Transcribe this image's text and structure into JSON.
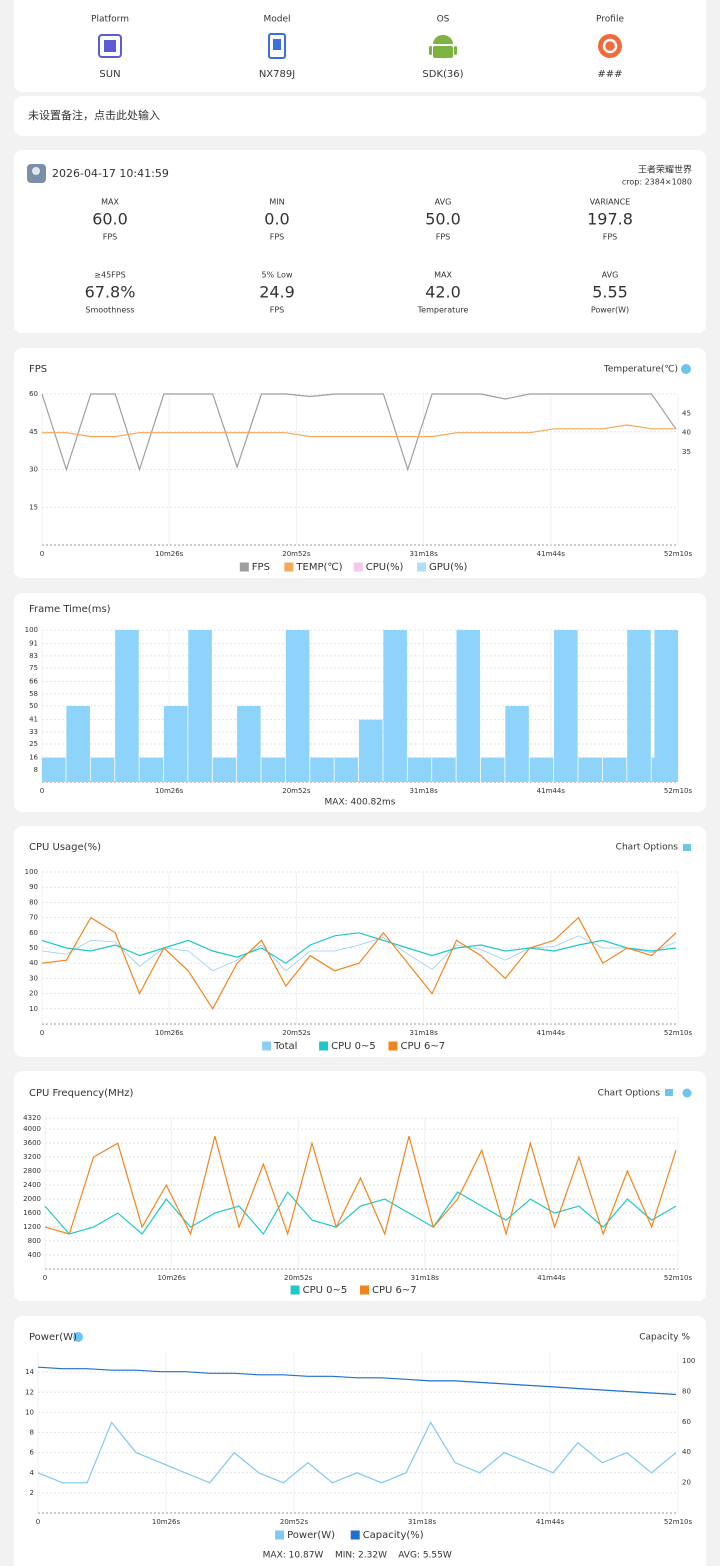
{
  "device": {
    "items": [
      {
        "label": "Platform",
        "value": "SUN"
      },
      {
        "label": "Model",
        "value": "NX789J"
      },
      {
        "label": "OS",
        "value": "SDK(36)"
      },
      {
        "label": "Profile",
        "value": "###"
      }
    ]
  },
  "note": "未设置备注，点击此处输入",
  "summary": {
    "date": "2026-04-17 10:41:59",
    "game": "王者荣耀世界",
    "crop": "crop: 2384×1080",
    "stats": [
      {
        "label": "MAX",
        "value": "60.0",
        "unit": "FPS"
      },
      {
        "label": "MIN",
        "value": "0.0",
        "unit": "FPS"
      },
      {
        "label": "AVG",
        "value": "50.0",
        "unit": "FPS"
      },
      {
        "label": "VARIANCE",
        "value": "197.8",
        "unit": "FPS"
      },
      {
        "label": "≥45FPS",
        "value": "67.8%",
        "unit": "Smoothness"
      },
      {
        "label": "5% Low",
        "value": "24.9",
        "unit": "FPS"
      },
      {
        "label": "MAX",
        "value": "42.0",
        "unit": "Temperature"
      },
      {
        "label": "AVG",
        "value": "5.55",
        "unit": "Power(W)"
      }
    ]
  },
  "chart_data": [
    {
      "type": "line",
      "title": "FPS",
      "right_label": "Temperature(℃)",
      "grid": true,
      "x": [
        0,
        120,
        240,
        360,
        480,
        600,
        720,
        840,
        960,
        1080,
        1200,
        1320,
        1440,
        1560,
        1680,
        1800,
        1920,
        2040,
        2160,
        2280,
        2400,
        2520,
        2640,
        2760,
        2880,
        3000,
        3120
      ],
      "xlim": [
        0,
        3130
      ],
      "xticks": [
        {
          "value": 0,
          "label": "0"
        },
        {
          "value": 626,
          "label": "10m26s"
        },
        {
          "value": 1252,
          "label": "20m52s"
        },
        {
          "value": 1878,
          "label": "31m18s"
        },
        {
          "value": 2504,
          "label": "41m44s"
        },
        {
          "value": 3130,
          "label": "52m10s"
        }
      ],
      "ylim": [
        0,
        60
      ],
      "yticks": [
        15,
        30,
        45,
        60
      ],
      "y2lim": [
        11,
        50
      ],
      "y2ticks": [
        35,
        40,
        45
      ],
      "series": [
        {
          "name": "FPS",
          "color": "#9e9e9e",
          "values": [
            60,
            30,
            60,
            60,
            30,
            60,
            60,
            60,
            31,
            60,
            60,
            59,
            60,
            60,
            60,
            30,
            60,
            60,
            60,
            58,
            60,
            60,
            60,
            60,
            60,
            60,
            46
          ]
        },
        {
          "name": "TEMP(℃)",
          "color": "#f5a85a",
          "axis": "y2",
          "values": [
            40,
            40,
            39,
            39,
            40,
            40,
            40,
            40,
            40,
            40,
            40,
            39,
            39,
            39,
            39,
            39,
            39,
            40,
            40,
            40,
            40,
            41,
            41,
            41,
            42,
            41,
            41
          ]
        },
        {
          "name": "CPU(%)",
          "color": "#f3b1e6"
        },
        {
          "name": "GPU(%)",
          "color": "#8fd3f5"
        }
      ]
    },
    {
      "type": "bar",
      "title": "Frame Time(ms)",
      "footer": "MAX: 400.82ms",
      "grid": true,
      "color": "#8dd3fb",
      "x": [
        0,
        120,
        240,
        360,
        480,
        600,
        720,
        840,
        960,
        1080,
        1200,
        1320,
        1440,
        1560,
        1680,
        1800,
        1920,
        2040,
        2160,
        2280,
        2400,
        2520,
        2640,
        2760,
        2880,
        3000,
        3120
      ],
      "xlim": [
        0,
        3130
      ],
      "xticks": [
        {
          "value": 0,
          "label": "0"
        },
        {
          "value": 626,
          "label": "10m26s"
        },
        {
          "value": 1252,
          "label": "20m52s"
        },
        {
          "value": 1878,
          "label": "31m18s"
        },
        {
          "value": 2504,
          "label": "41m44s"
        },
        {
          "value": 3130,
          "label": "52m10s"
        }
      ],
      "ylim": [
        0,
        100
      ],
      "yticks": [
        8,
        16,
        25,
        33,
        41,
        50,
        58,
        66,
        75,
        83,
        91,
        100
      ],
      "values": [
        16,
        50,
        16,
        100,
        16,
        50,
        100,
        16,
        50,
        16,
        100,
        16,
        16,
        41,
        100,
        16,
        16,
        100,
        16,
        50,
        16,
        100,
        16,
        16,
        100,
        16,
        100
      ]
    },
    {
      "type": "line",
      "title": "CPU Usage(%)",
      "right_label": "Chart Options",
      "grid": true,
      "x": [
        0,
        120,
        240,
        360,
        480,
        600,
        720,
        840,
        960,
        1080,
        1200,
        1320,
        1440,
        1560,
        1680,
        1800,
        1920,
        2040,
        2160,
        2280,
        2400,
        2520,
        2640,
        2760,
        2880,
        3000,
        3120
      ],
      "xlim": [
        0,
        3130
      ],
      "xticks": [
        {
          "value": 0,
          "label": "0"
        },
        {
          "value": 626,
          "label": "10m26s"
        },
        {
          "value": 1252,
          "label": "20m52s"
        },
        {
          "value": 1878,
          "label": "31m18s"
        },
        {
          "value": 2504,
          "label": "41m44s"
        },
        {
          "value": 3130,
          "label": "52m10s"
        }
      ],
      "ylim": [
        0,
        100
      ],
      "yticks": [
        10,
        20,
        30,
        40,
        50,
        60,
        70,
        80,
        90,
        100
      ],
      "series": [
        {
          "name": "Total",
          "color": "#8dcdf5",
          "values": [
            48,
            46,
            55,
            54,
            38,
            50,
            48,
            35,
            42,
            52,
            35,
            48,
            48,
            52,
            57,
            46,
            36,
            52,
            49,
            42,
            50,
            51,
            58,
            50,
            50,
            47,
            54
          ]
        },
        {
          "name": "CPU 0~5",
          "color": "#1fc8c8",
          "values": [
            55,
            50,
            48,
            52,
            45,
            50,
            55,
            48,
            44,
            50,
            40,
            52,
            58,
            60,
            55,
            50,
            45,
            50,
            52,
            48,
            50,
            48,
            52,
            55,
            50,
            48,
            50
          ]
        },
        {
          "name": "CPU 6~7",
          "color": "#f0851d",
          "values": [
            40,
            42,
            70,
            60,
            20,
            50,
            35,
            10,
            40,
            55,
            25,
            45,
            35,
            40,
            60,
            40,
            20,
            55,
            45,
            30,
            50,
            55,
            70,
            40,
            50,
            45,
            60
          ]
        }
      ]
    },
    {
      "type": "line",
      "title": "CPU Frequency(MHz)",
      "right_label": "Chart Options",
      "grid": true,
      "x": [
        0,
        120,
        240,
        360,
        480,
        600,
        720,
        840,
        960,
        1080,
        1200,
        1320,
        1440,
        1560,
        1680,
        1800,
        1920,
        2040,
        2160,
        2280,
        2400,
        2520,
        2640,
        2760,
        2880,
        3000,
        3120
      ],
      "xlim": [
        0,
        3130
      ],
      "xticks": [
        {
          "value": 0,
          "label": "0"
        },
        {
          "value": 626,
          "label": "10m26s"
        },
        {
          "value": 1252,
          "label": "20m52s"
        },
        {
          "value": 1878,
          "label": "31m18s"
        },
        {
          "value": 2504,
          "label": "41m44s"
        },
        {
          "value": 3130,
          "label": "52m10s"
        }
      ],
      "ylim": [
        0,
        4320
      ],
      "yticks": [
        400,
        800,
        1200,
        1600,
        2000,
        2400,
        2800,
        3200,
        3600,
        4000,
        4320
      ],
      "series": [
        {
          "name": "CPU 0~5",
          "color": "#1fc8c8",
          "values": [
            1800,
            1000,
            1200,
            1600,
            1000,
            2000,
            1200,
            1600,
            1800,
            1000,
            2200,
            1400,
            1200,
            1800,
            2000,
            1600,
            1200,
            2200,
            1800,
            1400,
            2000,
            1600,
            1800,
            1200,
            2000,
            1400,
            1800
          ]
        },
        {
          "name": "CPU 6~7",
          "color": "#f0851d",
          "values": [
            1200,
            1000,
            3200,
            3600,
            1200,
            2400,
            1000,
            3800,
            1200,
            3000,
            1000,
            3600,
            1200,
            2600,
            1000,
            3800,
            1200,
            2000,
            3400,
            1000,
            3600,
            1200,
            3200,
            1000,
            2800,
            1200,
            3400
          ]
        }
      ]
    },
    {
      "type": "line",
      "title": "Power(W)",
      "right_label": "Capacity %",
      "grid": true,
      "stats": [
        "MAX: 10.87W",
        "MIN: 2.32W",
        "AVG: 5.55W"
      ],
      "x": [
        0,
        120,
        240,
        360,
        480,
        600,
        720,
        840,
        960,
        1080,
        1200,
        1320,
        1440,
        1560,
        1680,
        1800,
        1920,
        2040,
        2160,
        2280,
        2400,
        2520,
        2640,
        2760,
        2880,
        3000,
        3120
      ],
      "xlim": [
        0,
        3130
      ],
      "xticks": [
        {
          "value": 0,
          "label": "0"
        },
        {
          "value": 626,
          "label": "10m26s"
        },
        {
          "value": 1252,
          "label": "20m52s"
        },
        {
          "value": 1878,
          "label": "31m18s"
        },
        {
          "value": 2504,
          "label": "41m44s"
        },
        {
          "value": 3130,
          "label": "52m10s"
        }
      ],
      "ylim": [
        0,
        16
      ],
      "yticks": [
        2,
        4,
        6,
        8,
        10,
        12,
        14
      ],
      "y2lim": [
        0,
        106
      ],
      "y2ticks": [
        20,
        40,
        60,
        80,
        100
      ],
      "series": [
        {
          "name": "Power(W)",
          "color": "#7fc9f2",
          "values": [
            4,
            3,
            3,
            9,
            6,
            5,
            4,
            3,
            6,
            4,
            3,
            5,
            3,
            4,
            3,
            4,
            9,
            5,
            4,
            6,
            5,
            4,
            7,
            5,
            6,
            4,
            6
          ]
        },
        {
          "name": "Capacity(%)",
          "color": "#1f6fd1",
          "axis": "y2",
          "values": [
            96,
            95,
            95,
            94,
            94,
            93,
            93,
            92,
            92,
            91,
            91,
            90,
            90,
            89,
            89,
            88,
            87,
            87,
            86,
            85,
            84,
            83,
            82,
            81,
            80,
            79,
            78
          ]
        }
      ]
    }
  ]
}
